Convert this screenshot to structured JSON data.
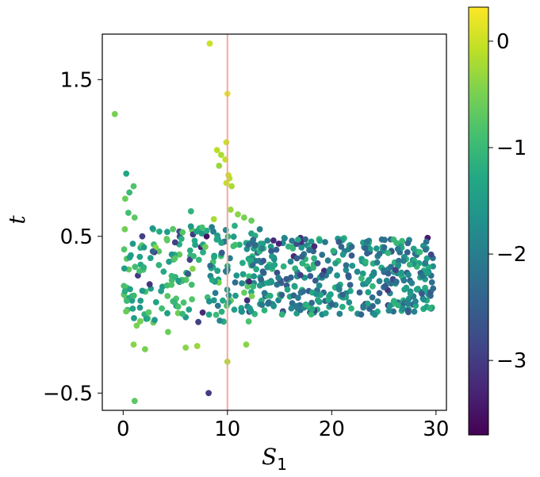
{
  "chart_data": {
    "type": "scatter",
    "xlabel": "S",
    "xlabel_subscript": "1",
    "ylabel": "t",
    "xlim": [
      -2,
      31
    ],
    "ylim": [
      -0.61,
      1.79
    ],
    "xticks": [
      0,
      10,
      20,
      30
    ],
    "xtick_labels": [
      "0",
      "10",
      "20",
      "30"
    ],
    "yticks": [
      -0.5,
      0.5,
      1.5
    ],
    "ytick_labels": [
      "−0.5",
      "0.5",
      "1.5"
    ],
    "vline": {
      "x": 10,
      "color": "#f4a8a0"
    },
    "colorbar": {
      "colormap": "viridis",
      "range": [
        -3.7,
        0.32
      ],
      "ticks": [
        0,
        -1,
        -2,
        -3
      ],
      "tick_labels": [
        "0",
        "−1",
        "−2",
        "−3"
      ]
    },
    "grid": false,
    "legend": "none",
    "points": [
      {
        "x": -0.8,
        "y": 1.28,
        "c": -0.5
      },
      {
        "x": 8.3,
        "y": 1.73,
        "c": 0.0
      },
      {
        "x": 10.0,
        "y": 1.41,
        "c": 0.15
      },
      {
        "x": 9.9,
        "y": 1.1,
        "c": 0.0
      },
      {
        "x": 9.0,
        "y": 1.05,
        "c": -0.1
      },
      {
        "x": 9.4,
        "y": 1.02,
        "c": -0.2
      },
      {
        "x": 9.8,
        "y": 0.99,
        "c": -0.05
      },
      {
        "x": 9.2,
        "y": 0.95,
        "c": -0.3
      },
      {
        "x": 10.1,
        "y": 0.89,
        "c": 0.0
      },
      {
        "x": 10.2,
        "y": 0.87,
        "c": -0.1
      },
      {
        "x": 9.9,
        "y": 0.84,
        "c": -0.05
      },
      {
        "x": 10.4,
        "y": 0.82,
        "c": -0.2
      },
      {
        "x": 0.3,
        "y": 0.9,
        "c": -1.3
      },
      {
        "x": 1.0,
        "y": 0.82,
        "c": -0.8
      },
      {
        "x": 0.6,
        "y": 0.78,
        "c": -1.0
      },
      {
        "x": 0.2,
        "y": 0.74,
        "c": -0.6
      },
      {
        "x": 10.3,
        "y": 0.67,
        "c": -0.3
      },
      {
        "x": 11.0,
        "y": 0.64,
        "c": -0.4
      },
      {
        "x": 11.6,
        "y": 0.62,
        "c": -0.5
      },
      {
        "x": 12.3,
        "y": 0.6,
        "c": -0.6
      },
      {
        "x": 8.7,
        "y": 0.61,
        "c": -0.2
      },
      {
        "x": 0.5,
        "y": 0.65,
        "c": -0.9
      },
      {
        "x": 1.1,
        "y": 0.62,
        "c": -0.7
      },
      {
        "x": 6.5,
        "y": 0.66,
        "c": -1.1
      },
      {
        "x": 10.0,
        "y": -0.3,
        "c": -0.2
      },
      {
        "x": 11.8,
        "y": -0.19,
        "c": -0.4
      },
      {
        "x": 7.1,
        "y": -0.2,
        "c": -0.3
      },
      {
        "x": 6.0,
        "y": -0.21,
        "c": -0.4
      },
      {
        "x": 2.1,
        "y": -0.22,
        "c": -0.5
      },
      {
        "x": 1.0,
        "y": -0.19,
        "c": -0.4
      },
      {
        "x": 1.1,
        "y": -0.55,
        "c": -0.7
      },
      {
        "x": 4.3,
        "y": -0.11,
        "c": -0.6
      },
      {
        "x": 1.3,
        "y": -0.07,
        "c": -0.5
      },
      {
        "x": 2.9,
        "y": -0.05,
        "c": -0.6
      },
      {
        "x": 8.2,
        "y": -0.5,
        "c": -3.0
      },
      {
        "x": 8.0,
        "y": 0.5,
        "c": -3.5
      },
      {
        "x": 25.4,
        "y": 0.06,
        "c": -3.0
      },
      {
        "x": 29.2,
        "y": 0.49,
        "c": -3.4
      },
      {
        "x": 17.0,
        "y": 0.49,
        "c": -3.2
      }
    ]
  }
}
